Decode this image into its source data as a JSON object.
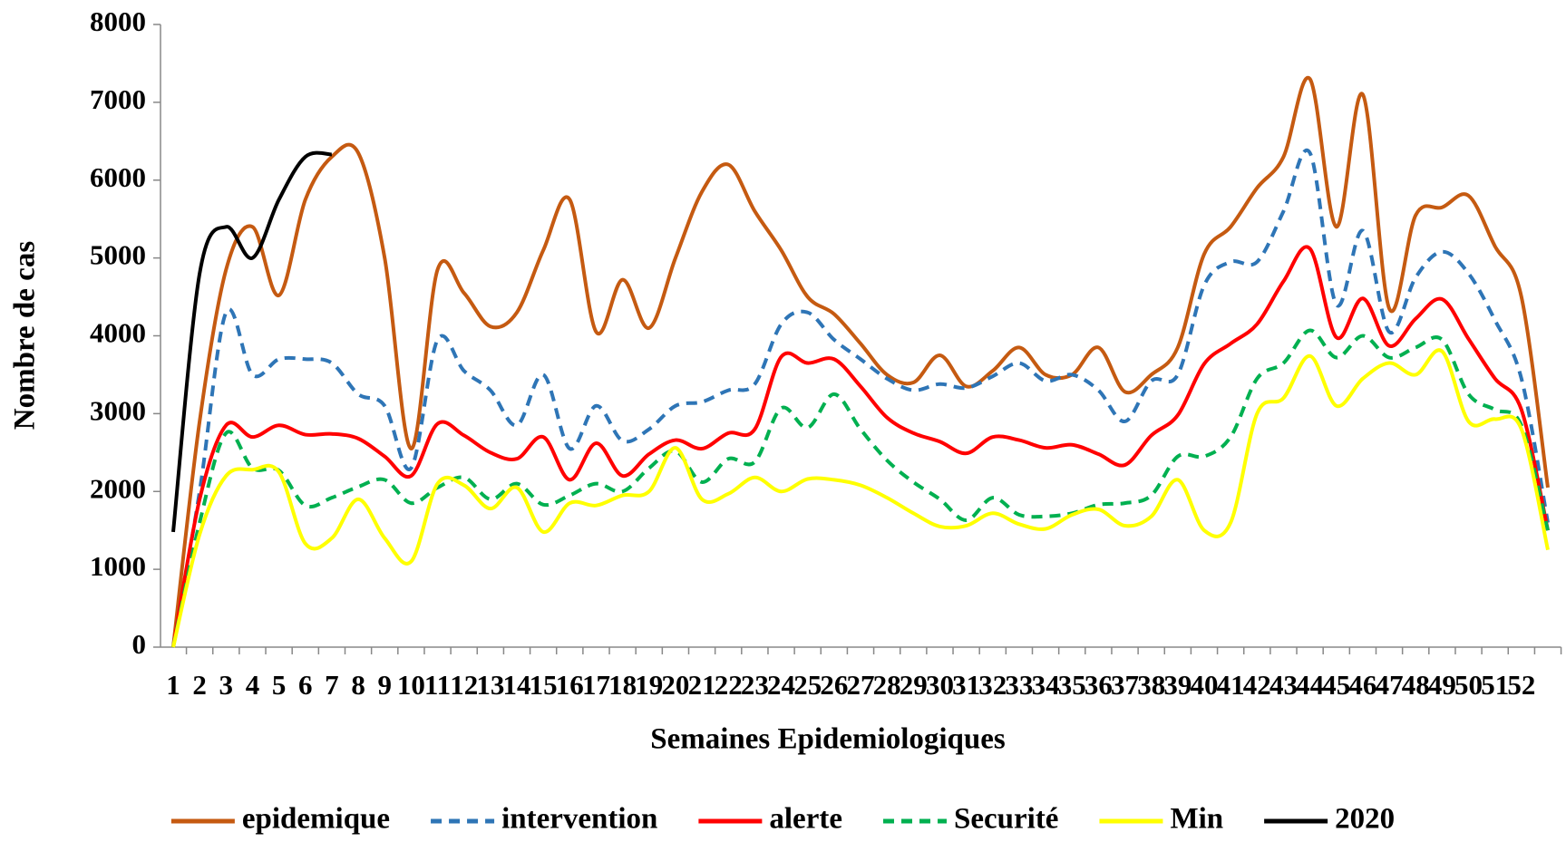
{
  "chart_data": {
    "type": "line",
    "x_label": "Semaines Epidemiologiques",
    "y_label": "Nombre de cas",
    "categories": [
      "1",
      "2",
      "3",
      "4",
      "5",
      "6",
      "7",
      "8",
      "9",
      "10",
      "11",
      "12",
      "13",
      "14",
      "15",
      "16",
      "17",
      "18",
      "19",
      "20",
      "21",
      "22",
      "23",
      "24",
      "25",
      "26",
      "27",
      "28",
      "29",
      "30",
      "31",
      "32",
      "33",
      "34",
      "35",
      "36",
      "37",
      "38",
      "39",
      "40",
      "41",
      "42",
      "43",
      "44",
      "45",
      "46",
      "47",
      "48",
      "49",
      "50",
      "51",
      "52",
      null
    ],
    "ylim": [
      0,
      8000
    ],
    "yticks": [
      0,
      1000,
      2000,
      3000,
      4000,
      5000,
      6000,
      7000,
      8000
    ],
    "legend": "bottom",
    "series": [
      {
        "name": "epidemique",
        "color": "#c55a11",
        "dashed": false,
        "values": [
          0,
          2900,
          4850,
          5400,
          4520,
          5750,
          6300,
          6350,
          5000,
          2550,
          4850,
          4550,
          4120,
          4300,
          5100,
          5750,
          4050,
          4720,
          4100,
          5000,
          5850,
          6200,
          5600,
          5100,
          4500,
          4280,
          3900,
          3500,
          3400,
          3750,
          3350,
          3550,
          3850,
          3500,
          3500,
          3850,
          3280,
          3500,
          3850,
          5050,
          5400,
          5900,
          6300,
          7300,
          5400,
          7100,
          4350,
          5550,
          5650,
          5800,
          5150,
          4500,
          2050
        ]
      },
      {
        "name": "intervention",
        "color": "#2e75b6",
        "dashed": true,
        "values": [
          0,
          2000,
          4300,
          3500,
          3700,
          3700,
          3650,
          3250,
          3100,
          2300,
          3950,
          3550,
          3300,
          2850,
          3500,
          2550,
          3100,
          2650,
          2800,
          3100,
          3150,
          3300,
          3380,
          4150,
          4300,
          3950,
          3700,
          3450,
          3300,
          3380,
          3330,
          3480,
          3650,
          3420,
          3500,
          3300,
          2900,
          3420,
          3500,
          4650,
          4950,
          4950,
          5600,
          6350,
          4400,
          5350,
          4050,
          4750,
          5080,
          4800,
          4200,
          3450,
          1600
        ]
      },
      {
        "name": "alerte",
        "color": "#ff0000",
        "dashed": false,
        "values": [
          0,
          1900,
          2850,
          2700,
          2850,
          2730,
          2740,
          2680,
          2450,
          2200,
          2870,
          2720,
          2500,
          2420,
          2700,
          2150,
          2620,
          2200,
          2480,
          2660,
          2550,
          2750,
          2800,
          3730,
          3650,
          3700,
          3350,
          2950,
          2750,
          2640,
          2490,
          2700,
          2660,
          2560,
          2600,
          2480,
          2340,
          2720,
          2980,
          3640,
          3900,
          4150,
          4700,
          5120,
          3980,
          4480,
          3870,
          4220,
          4470,
          3960,
          3450,
          3050,
          1500
        ]
      },
      {
        "name": "Securité",
        "color": "#00b050",
        "dashed": true,
        "values": [
          0,
          1600,
          2750,
          2300,
          2270,
          1820,
          1920,
          2060,
          2150,
          1850,
          2050,
          2180,
          1900,
          2100,
          1830,
          1950,
          2100,
          2000,
          2300,
          2520,
          2120,
          2420,
          2380,
          3070,
          2820,
          3250,
          2800,
          2400,
          2120,
          1900,
          1630,
          1920,
          1700,
          1680,
          1720,
          1830,
          1850,
          1950,
          2450,
          2450,
          2700,
          3450,
          3650,
          4070,
          3720,
          4000,
          3720,
          3850,
          3950,
          3250,
          3050,
          2850,
          1500
        ]
      },
      {
        "name": "Min",
        "color": "#ffff00",
        "dashed": false,
        "values": [
          0,
          1450,
          2200,
          2280,
          2250,
          1330,
          1400,
          1900,
          1400,
          1100,
          2100,
          2080,
          1780,
          2050,
          1480,
          1850,
          1820,
          1950,
          2000,
          2560,
          1900,
          1970,
          2180,
          2000,
          2160,
          2150,
          2080,
          1920,
          1720,
          1550,
          1560,
          1720,
          1580,
          1520,
          1700,
          1770,
          1560,
          1680,
          2150,
          1500,
          1600,
          3000,
          3200,
          3740,
          3100,
          3450,
          3650,
          3500,
          3800,
          2900,
          2930,
          2800,
          1250
        ]
      },
      {
        "name": "2020",
        "color": "#000000",
        "dashed": false,
        "values": [
          1480,
          4800,
          5400,
          5000,
          5750,
          6300,
          6330,
          null,
          null,
          null,
          null,
          null,
          null,
          null,
          null,
          null,
          null,
          null,
          null,
          null,
          null,
          null,
          null,
          null,
          null,
          null,
          null,
          null,
          null,
          null,
          null,
          null,
          null,
          null,
          null,
          null,
          null,
          null,
          null,
          null,
          null,
          null,
          null,
          null,
          null,
          null,
          null,
          null,
          null,
          null,
          null,
          null,
          null
        ]
      }
    ]
  }
}
